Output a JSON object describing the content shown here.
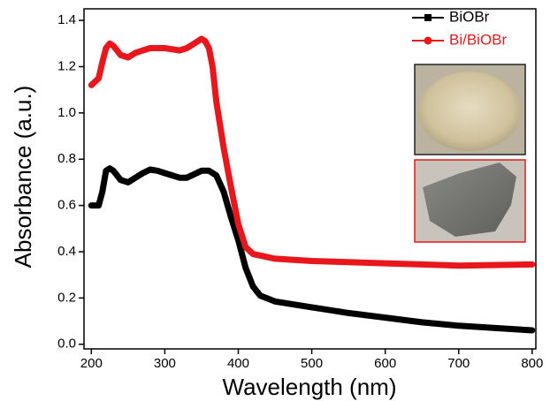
{
  "chart_data": {
    "type": "line",
    "x_label": "Wavelength (nm)",
    "y_label": "Absorbance (a.u.)",
    "xlim": [
      190,
      805
    ],
    "ylim": [
      -0.02,
      1.45
    ],
    "xticks": [
      200,
      300,
      400,
      500,
      600,
      700,
      800
    ],
    "yticks": [
      {
        "value": 0,
        "label": "0.0"
      },
      0.2,
      0.4,
      0.6,
      0.8,
      {
        "value": 1,
        "label": "1.0"
      },
      1.2,
      1.4
    ],
    "legend": "upper right",
    "series": [
      {
        "name": "BiOBr",
        "color": "#000000",
        "x": [
          200,
          210,
          215,
          220,
          225,
          230,
          240,
          250,
          260,
          270,
          280,
          290,
          300,
          320,
          330,
          340,
          350,
          360,
          370,
          380,
          390,
          400,
          410,
          420,
          430,
          450,
          500,
          550,
          600,
          650,
          700,
          750,
          800
        ],
        "values": [
          0.6,
          0.6,
          0.66,
          0.75,
          0.76,
          0.75,
          0.71,
          0.7,
          0.72,
          0.74,
          0.755,
          0.75,
          0.74,
          0.72,
          0.72,
          0.735,
          0.75,
          0.75,
          0.73,
          0.66,
          0.55,
          0.45,
          0.33,
          0.25,
          0.21,
          0.185,
          0.16,
          0.135,
          0.115,
          0.095,
          0.08,
          0.07,
          0.06
        ]
      },
      {
        "name": "Bi/BiOBr",
        "color": "#e8171c",
        "x": [
          200,
          210,
          215,
          220,
          225,
          230,
          240,
          250,
          260,
          270,
          280,
          300,
          320,
          330,
          340,
          350,
          355,
          360,
          365,
          370,
          380,
          390,
          400,
          410,
          420,
          450,
          500,
          600,
          700,
          800
        ],
        "values": [
          1.12,
          1.15,
          1.22,
          1.28,
          1.3,
          1.29,
          1.25,
          1.24,
          1.26,
          1.27,
          1.28,
          1.28,
          1.27,
          1.28,
          1.3,
          1.32,
          1.31,
          1.28,
          1.2,
          1.05,
          0.85,
          0.68,
          0.52,
          0.42,
          0.39,
          0.37,
          0.36,
          0.35,
          0.34,
          0.345
        ]
      }
    ]
  }
}
